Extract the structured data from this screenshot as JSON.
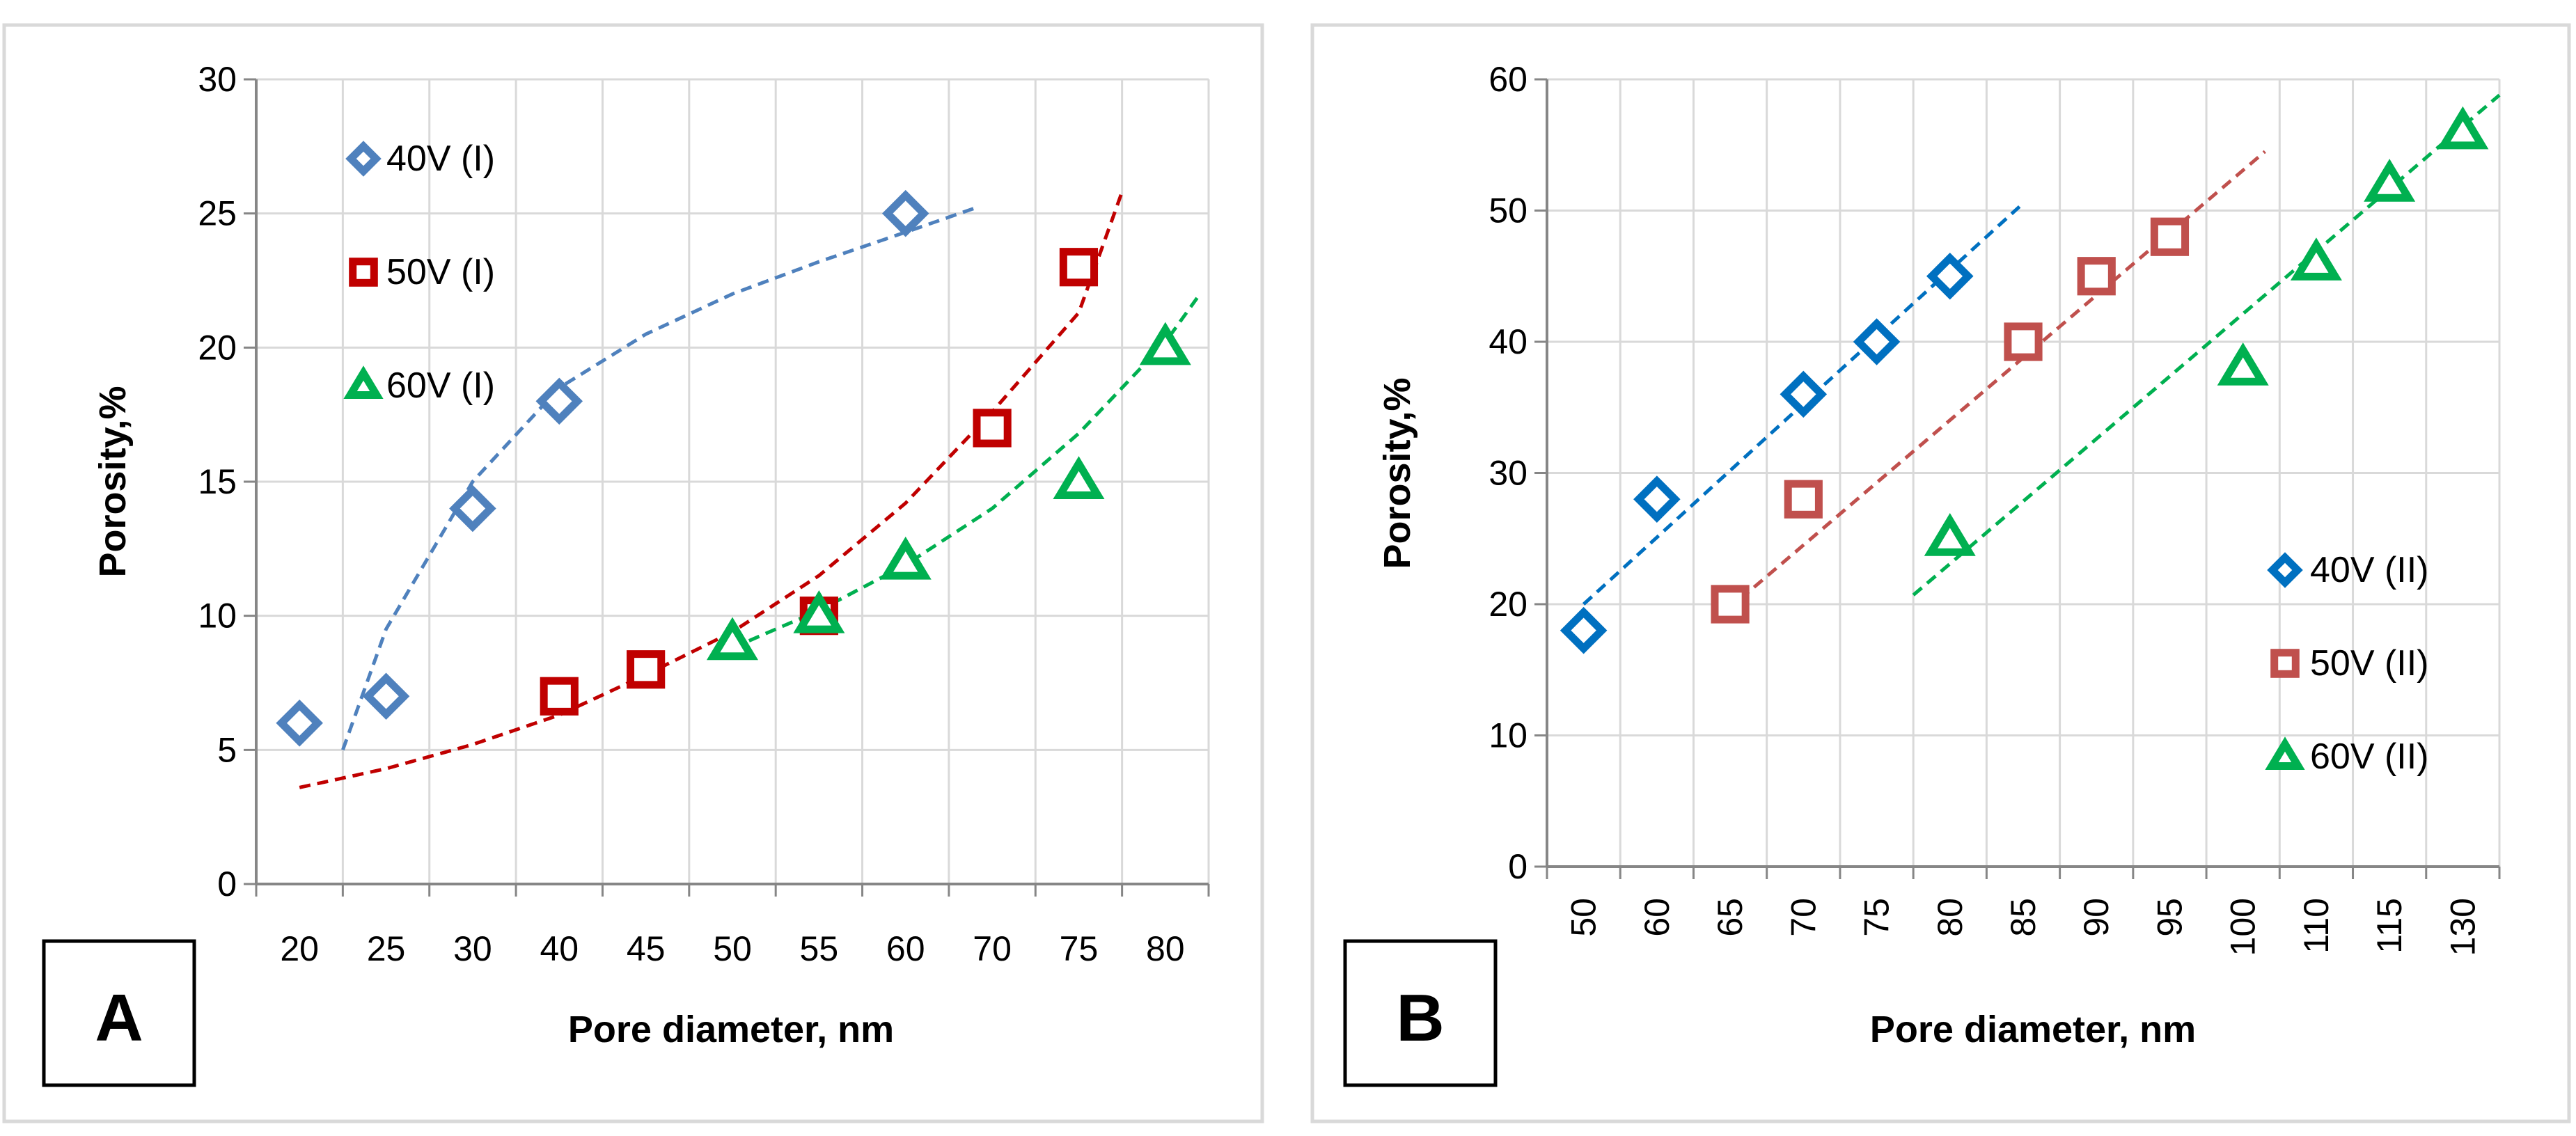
{
  "chart_data": [
    {
      "type": "scatter",
      "panel_label": "A",
      "xlabel": "Pore diameter, nm",
      "ylabel": "Porosity,%",
      "categories": [
        "20",
        "25",
        "30",
        "40",
        "45",
        "50",
        "55",
        "60",
        "70",
        "75",
        "80"
      ],
      "ylim": [
        0,
        30
      ],
      "yticks": [
        "0",
        "5",
        "10",
        "15",
        "20",
        "25",
        "30"
      ],
      "grid": true,
      "legend_position": "top-left",
      "series": [
        {
          "name": "40V (I)",
          "marker": "diamond",
          "color": "#4f81bd",
          "points": [
            [
              0,
              6
            ],
            [
              1,
              7
            ],
            [
              2,
              14
            ],
            [
              3,
              18
            ],
            [
              7,
              25
            ]
          ],
          "trend": [
            [
              0.5,
              5
            ],
            [
              1,
              9.5
            ],
            [
              2,
              15
            ],
            [
              3,
              18.5
            ],
            [
              4,
              20.5
            ],
            [
              5,
              22
            ],
            [
              6,
              23.2
            ],
            [
              7,
              24.3
            ],
            [
              7.8,
              25.2
            ]
          ]
        },
        {
          "name": "50V (I)",
          "marker": "square",
          "color": "#c00000",
          "points": [
            [
              3,
              7
            ],
            [
              4,
              8
            ],
            [
              6,
              10
            ],
            [
              8,
              17
            ],
            [
              9,
              23
            ]
          ],
          "trend": [
            [
              0,
              3.6
            ],
            [
              1,
              4.3
            ],
            [
              2,
              5.2
            ],
            [
              3,
              6.3
            ],
            [
              4,
              7.8
            ],
            [
              5,
              9.4
            ],
            [
              6,
              11.5
            ],
            [
              7,
              14.2
            ],
            [
              8,
              17.6
            ],
            [
              9,
              21.3
            ],
            [
              9.5,
              25.8
            ]
          ]
        },
        {
          "name": "60V (I)",
          "marker": "triangle",
          "color": "#00b050",
          "points": [
            [
              5,
              9
            ],
            [
              6,
              10
            ],
            [
              7,
              12
            ],
            [
              9,
              15
            ],
            [
              10,
              20
            ]
          ],
          "trend": [
            [
              5,
              8.8
            ],
            [
              6,
              10.2
            ],
            [
              7,
              11.9
            ],
            [
              8,
              14.0
            ],
            [
              9,
              16.8
            ],
            [
              10,
              20.2
            ],
            [
              10.4,
              22
            ]
          ]
        }
      ]
    },
    {
      "type": "scatter",
      "panel_label": "B",
      "xlabel": "Pore diameter, nm",
      "ylabel": "Porosity,%",
      "categories": [
        "50",
        "60",
        "65",
        "70",
        "75",
        "80",
        "85",
        "90",
        "95",
        "100",
        "110",
        "115",
        "130"
      ],
      "ylim": [
        0,
        60
      ],
      "yticks": [
        "0",
        "10",
        "20",
        "30",
        "40",
        "50",
        "60"
      ],
      "grid": true,
      "legend_position": "bottom-right",
      "series": [
        {
          "name": "40V (II)",
          "marker": "diamond",
          "color": "#0070c0",
          "points": [
            [
              0,
              18
            ],
            [
              1,
              28
            ],
            [
              3,
              36
            ],
            [
              4,
              40
            ],
            [
              5,
              45
            ]
          ],
          "trend": [
            [
              0,
              20
            ],
            [
              5.95,
              50.3
            ]
          ]
        },
        {
          "name": "50V (II)",
          "marker": "square",
          "color": "#c0504d",
          "points": [
            [
              2,
              20
            ],
            [
              3,
              28
            ],
            [
              6,
              40
            ],
            [
              7,
              45
            ],
            [
              8,
              48
            ]
          ],
          "trend": [
            [
              1.95,
              19.5
            ],
            [
              9.3,
              54.5
            ]
          ]
        },
        {
          "name": "60V (II)",
          "marker": "triangle",
          "color": "#00b050",
          "points": [
            [
              5,
              25
            ],
            [
              9,
              38
            ],
            [
              10,
              46
            ],
            [
              11,
              52
            ],
            [
              12,
              56
            ]
          ],
          "trend": [
            [
              4.5,
              20.7
            ],
            [
              12.5,
              58.8
            ]
          ]
        }
      ]
    }
  ]
}
